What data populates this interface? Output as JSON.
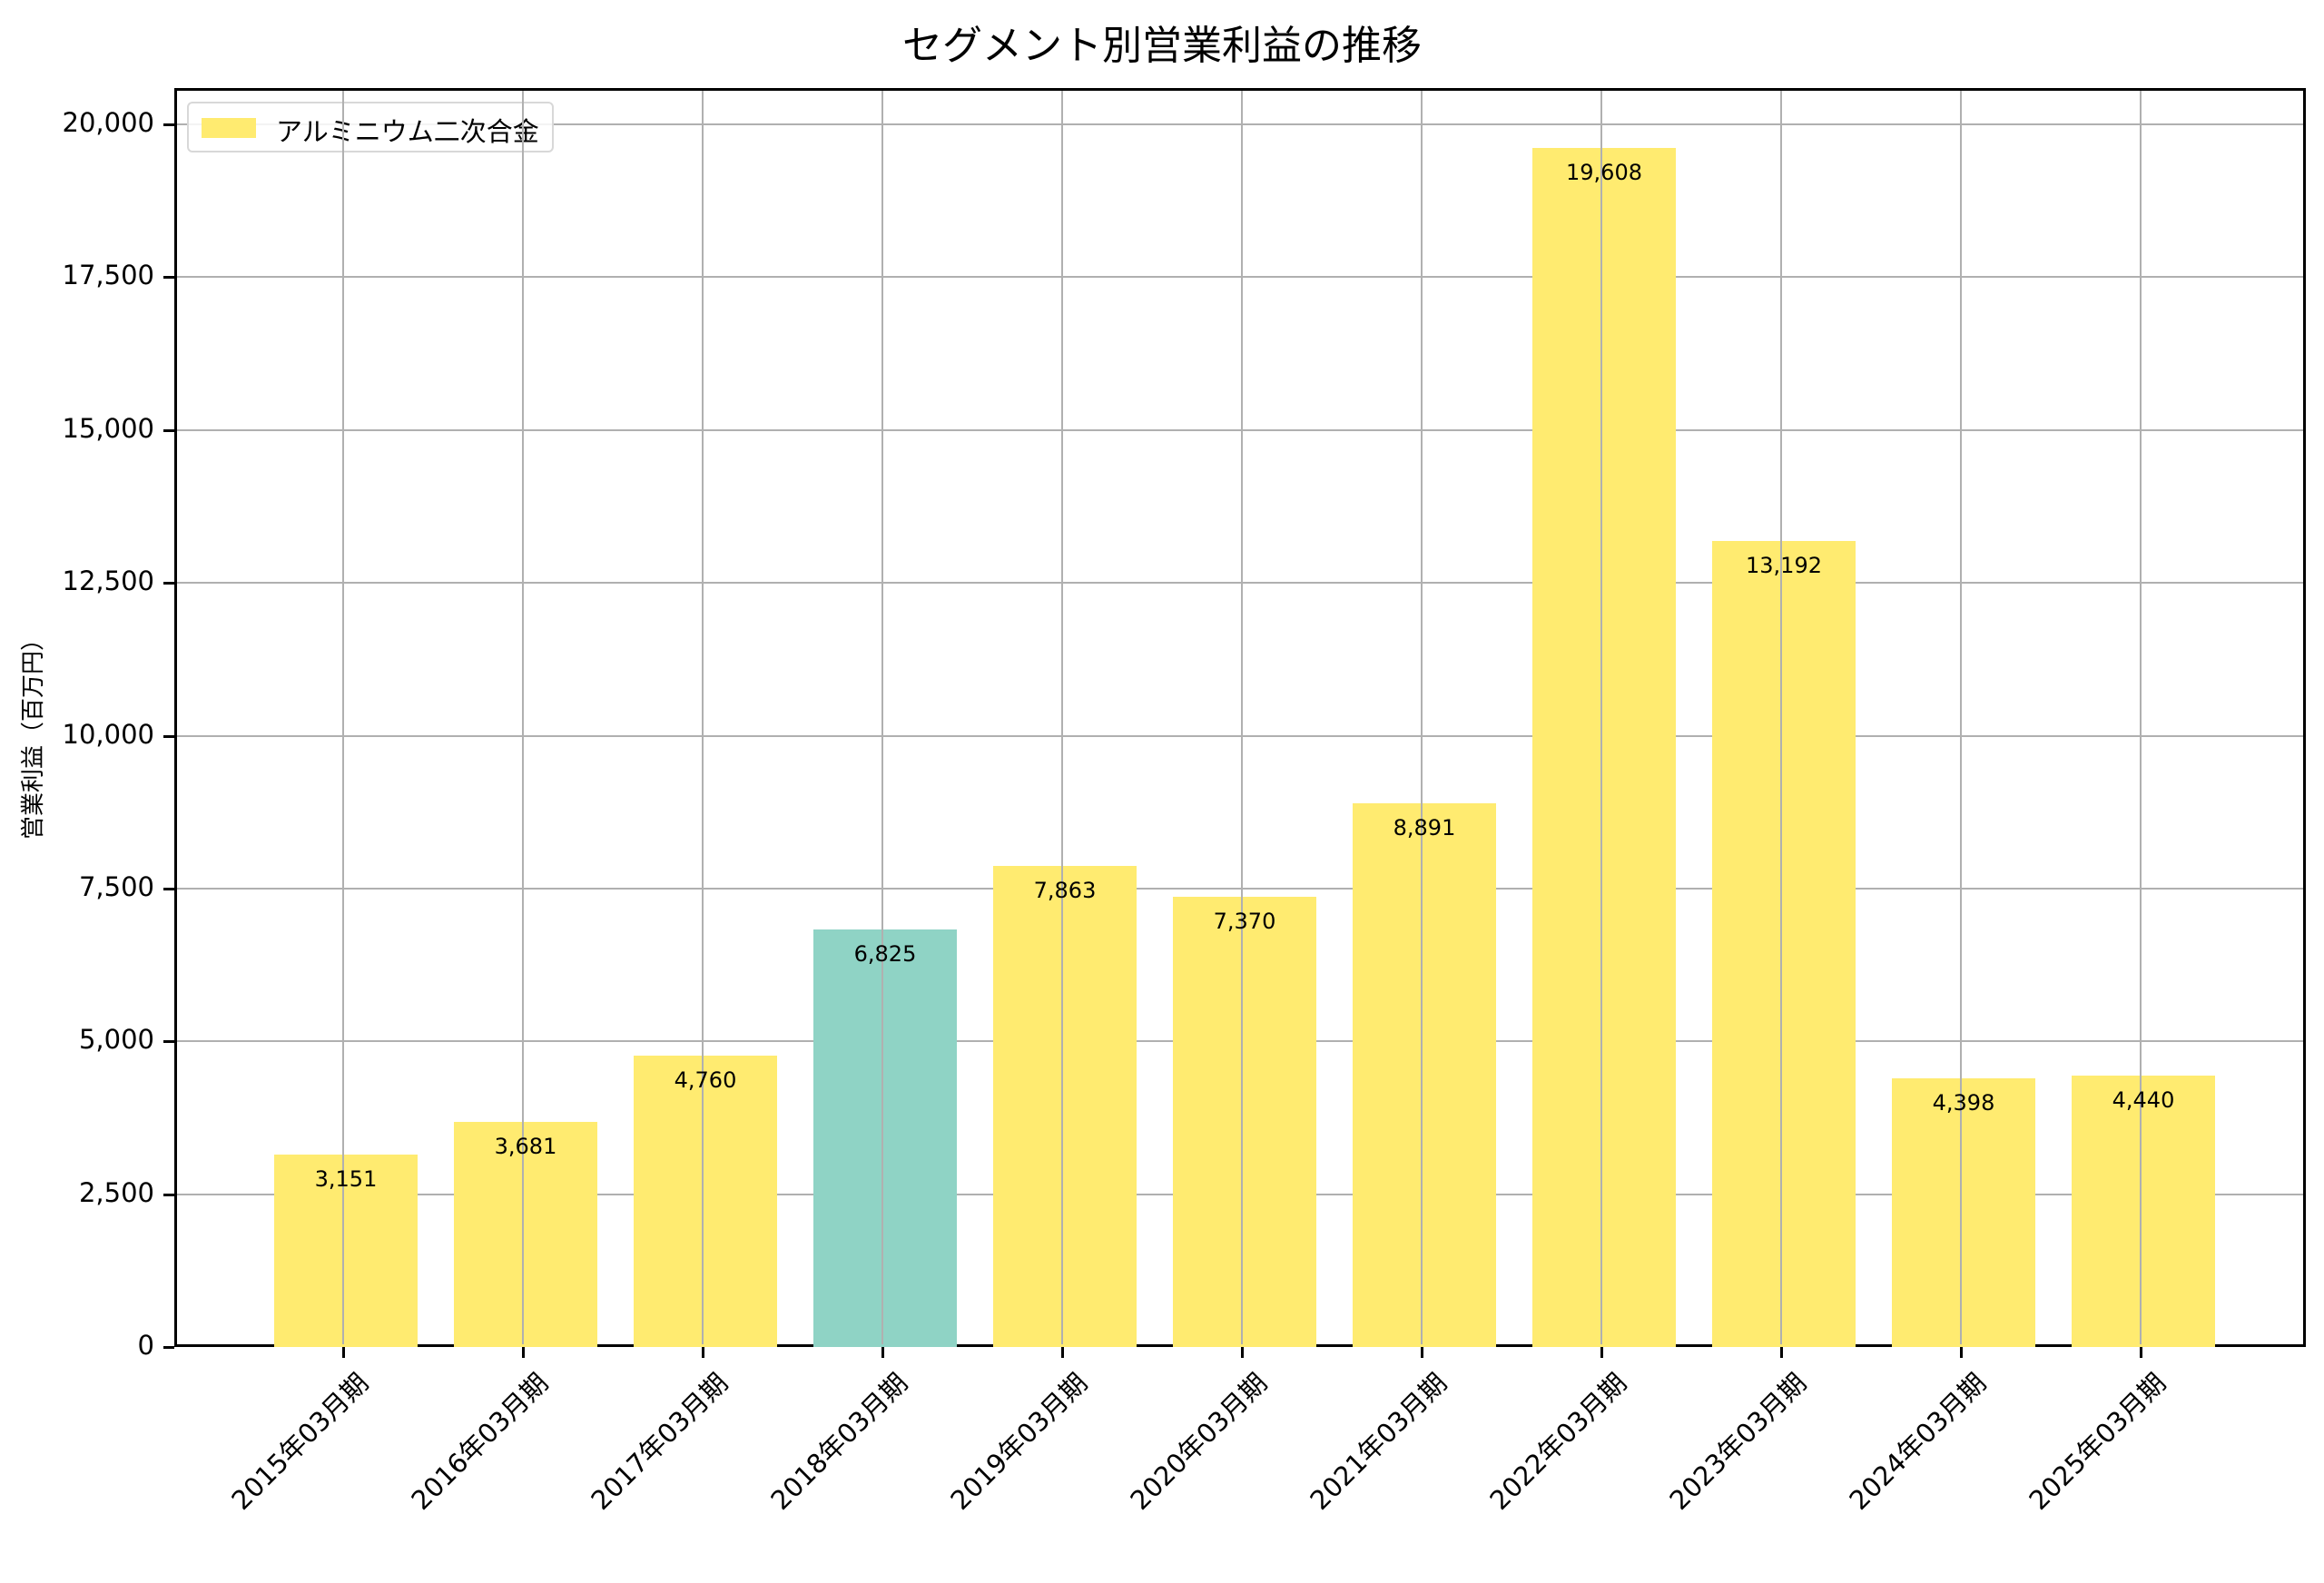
{
  "chart_data": {
    "type": "bar",
    "title": "セグメント別営業利益の推移",
    "xlabel": "",
    "ylabel": "営業利益（百万円）",
    "ylim": [
      0,
      20594
    ],
    "yticks": [
      "0",
      "2,500",
      "5,000",
      "7,500",
      "10,000",
      "12,500",
      "15,000",
      "17,500",
      "20,000"
    ],
    "ytick_values": [
      0,
      2500,
      5000,
      7500,
      10000,
      12500,
      15000,
      17500,
      20000
    ],
    "grid": true,
    "legend_position": "upper left",
    "categories": [
      "2015年03月期",
      "2016年03月期",
      "2017年03月期",
      "2018年03月期",
      "2019年03月期",
      "2020年03月期",
      "2021年03月期",
      "2022年03月期",
      "2023年03月期",
      "2024年03月期",
      "2025年03月期"
    ],
    "series": [
      {
        "name": "アルミニウム二次合金",
        "values": [
          3151,
          3681,
          4760,
          6825,
          7863,
          7370,
          8891,
          19608,
          13192,
          4398,
          4440
        ],
        "color": "#ffeb70",
        "highlight_color": "#8fd3c5",
        "highlight_index": 3
      }
    ],
    "value_labels": [
      "3,151",
      "3,681",
      "4,760",
      "6,825",
      "7,863",
      "7,370",
      "8,891",
      "19,608",
      "13,192",
      "4,398",
      "4,440"
    ]
  },
  "legend": {
    "label": "アルミニウム二次合金",
    "color": "#ffeb70"
  }
}
